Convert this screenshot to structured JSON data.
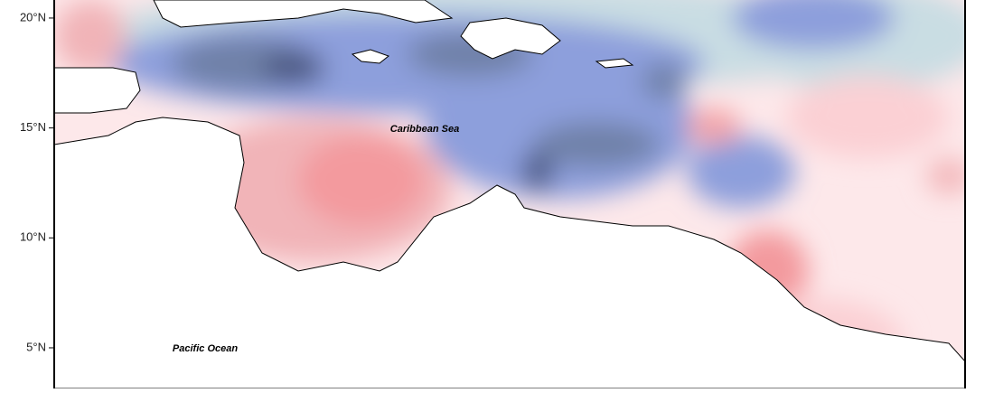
{
  "map": {
    "ylim": [
      3.15,
      20.82
    ],
    "lat_ticks": [
      {
        "value": 20,
        "label": "20°N"
      },
      {
        "value": 15,
        "label": "15°N"
      },
      {
        "value": 10,
        "label": "10°N"
      },
      {
        "value": 5,
        "label": "5°N"
      }
    ],
    "labels": {
      "caribbean": "Caribbean Sea",
      "pacific": "Pacific Ocean"
    }
  }
}
